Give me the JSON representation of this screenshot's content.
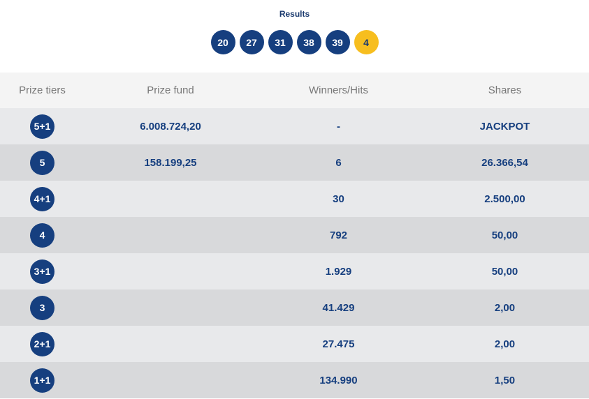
{
  "results": {
    "title": "Results",
    "numbers": [
      "20",
      "27",
      "31",
      "38",
      "39"
    ],
    "bonus": "4"
  },
  "table": {
    "headers": {
      "tier": "Prize tiers",
      "fund": "Prize fund",
      "winners": "Winners/Hits",
      "shares": "Shares"
    },
    "rows": [
      {
        "tier": "5+1",
        "fund": "6.008.724,20",
        "winners": "-",
        "share": "JACKPOT"
      },
      {
        "tier": "5",
        "fund": "158.199,25",
        "winners": "6",
        "share": "26.366,54"
      },
      {
        "tier": "4+1",
        "fund": "",
        "winners": "30",
        "share": "2.500,00"
      },
      {
        "tier": "4",
        "fund": "",
        "winners": "792",
        "share": "50,00"
      },
      {
        "tier": "3+1",
        "fund": "",
        "winners": "1.929",
        "share": "50,00"
      },
      {
        "tier": "3",
        "fund": "",
        "winners": "41.429",
        "share": "2,00"
      },
      {
        "tier": "2+1",
        "fund": "",
        "winners": "27.475",
        "share": "2,00"
      },
      {
        "tier": "1+1",
        "fund": "",
        "winners": "134.990",
        "share": "1,50"
      }
    ]
  },
  "colors": {
    "ball": "#163f7f",
    "bonus_ball": "#f7be1f",
    "text_primary": "#163f7f",
    "row_light": "#e8e9eb",
    "row_dark": "#d8d9db"
  }
}
